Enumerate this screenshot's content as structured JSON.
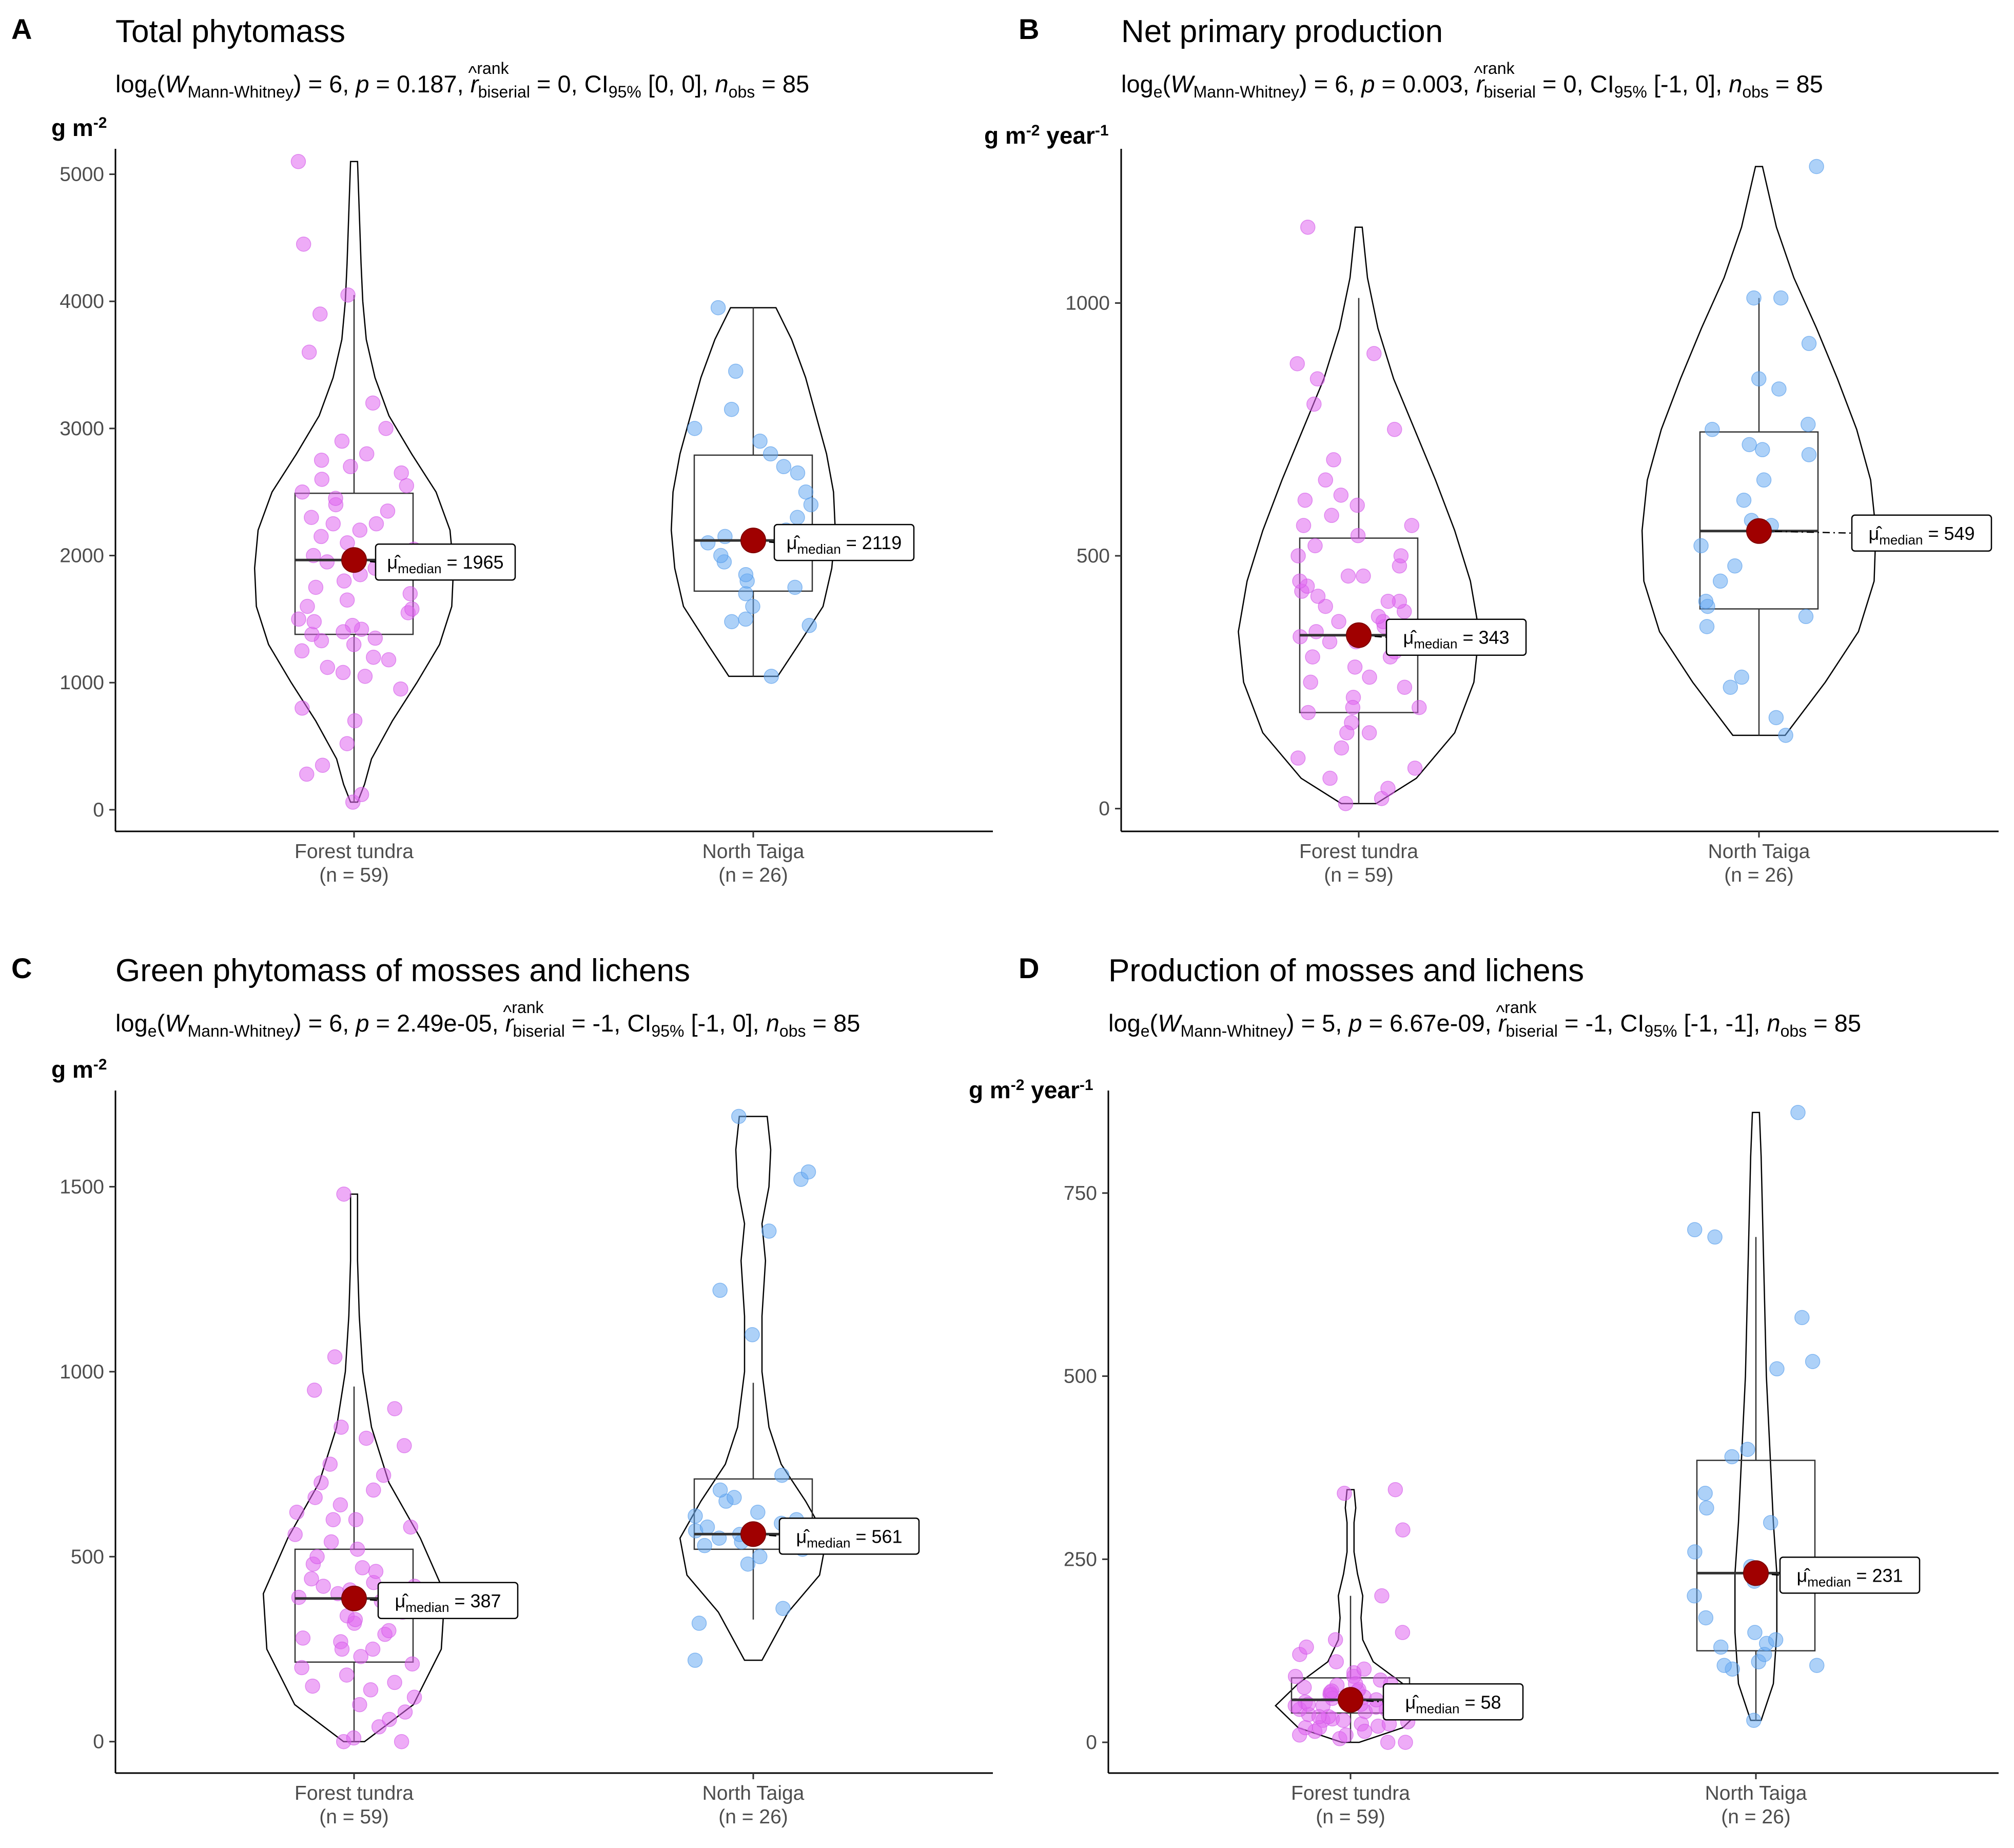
{
  "colors": {
    "forest_tundra_points": "#e066f0",
    "north_taiga_points": "#6aacf2",
    "median_dot": "#a00000"
  },
  "median_symbol": "μ̂",
  "chart_data": [
    {
      "type": "violin",
      "panel_letter": "A",
      "title": "Total phytomass",
      "stat": {
        "log_base": "log",
        "log_sub": "e",
        "W": "W",
        "W_sub": "Mann-Whitney",
        "W_val": " = 6, ",
        "p": "p",
        "p_val": " = 0.187, ",
        "r": "r",
        "r_hat": "^",
        "r_sup": "rank",
        "r_sub": "biserial",
        "r_val": " = 0, ",
        "ci": "CI",
        "ci_sub": "95%",
        "ci_val": " [0, 0], ",
        "n": "n",
        "n_sub": "obs",
        "n_val": " = 85"
      },
      "ylabel": "g m",
      "ylabel_sup": "-2",
      "ylabel_tail": "",
      "ylim": [
        -170,
        5200
      ],
      "yticks": [
        0,
        1000,
        2000,
        3000,
        4000,
        5000
      ],
      "yticklabels": [
        "0",
        "1000",
        "2000",
        "3000",
        "4000",
        "5000"
      ],
      "groups": [
        {
          "name": "Forest tundra",
          "n_label": "(n = 59)",
          "cls": "pt-ft",
          "median": 1965,
          "q1": 1380,
          "q3": 2490,
          "whisker_low": 60,
          "whisker_high": 4050,
          "median_label_value": "1965",
          "violin": [
            [
              60,
              0.02
            ],
            [
              200,
              0.06
            ],
            [
              400,
              0.1
            ],
            [
              700,
              0.22
            ],
            [
              1000,
              0.36
            ],
            [
              1300,
              0.49
            ],
            [
              1600,
              0.56
            ],
            [
              1900,
              0.57
            ],
            [
              2200,
              0.55
            ],
            [
              2500,
              0.47
            ],
            [
              2800,
              0.33
            ],
            [
              3100,
              0.2
            ],
            [
              3400,
              0.12
            ],
            [
              3700,
              0.07
            ],
            [
              4000,
              0.05
            ],
            [
              4300,
              0.04
            ],
            [
              4700,
              0.03
            ],
            [
              5100,
              0.02
            ]
          ],
          "points": [
            60,
            120,
            280,
            350,
            520,
            700,
            800,
            950,
            1050,
            1080,
            1120,
            1180,
            1200,
            1250,
            1300,
            1330,
            1350,
            1380,
            1420,
            1450,
            1480,
            1500,
            1550,
            1580,
            1600,
            1650,
            1700,
            1750,
            1800,
            1850,
            1900,
            1950,
            2000,
            2050,
            2100,
            2150,
            2200,
            2250,
            2300,
            2350,
            2400,
            2450,
            2500,
            2550,
            2600,
            2650,
            2700,
            2750,
            2800,
            2900,
            3000,
            3200,
            3600,
            3900,
            4050,
            4450,
            5100,
            1400,
            2250
          ]
        },
        {
          "name": "North Taiga",
          "n_label": "(n = 26)",
          "cls": "pt-nt",
          "median": 2119,
          "q1": 1720,
          "q3": 2790,
          "whisker_low": 1050,
          "whisker_high": 3950,
          "median_label_value": "2119",
          "violin": [
            [
              1050,
              0.14
            ],
            [
              1300,
              0.26
            ],
            [
              1600,
              0.4
            ],
            [
              1900,
              0.45
            ],
            [
              2200,
              0.47
            ],
            [
              2500,
              0.46
            ],
            [
              2800,
              0.42
            ],
            [
              3100,
              0.36
            ],
            [
              3400,
              0.3
            ],
            [
              3700,
              0.22
            ],
            [
              3950,
              0.13
            ]
          ],
          "points": [
            1050,
            1450,
            1480,
            1500,
            1600,
            1700,
            1750,
            1800,
            1850,
            1950,
            2000,
            2050,
            2100,
            2150,
            2200,
            2300,
            2400,
            2500,
            2650,
            2700,
            2800,
            2900,
            3000,
            3150,
            3450,
            3950
          ]
        }
      ]
    },
    {
      "type": "violin",
      "panel_letter": "B",
      "title": "Net primary production",
      "stat": {
        "log_base": "log",
        "log_sub": "e",
        "W": "W",
        "W_sub": "Mann-Whitney",
        "W_val": " = 6, ",
        "p": "p",
        "p_val": " = 0.003, ",
        "r": "r",
        "r_hat": "^",
        "r_sup": "rank",
        "r_sub": "biserial",
        "r_val": " = 0, ",
        "ci": "CI",
        "ci_sub": "95%",
        "ci_val": " [-1, 0], ",
        "n": "n",
        "n_sub": "obs",
        "n_val": " = 85"
      },
      "ylabel": "g m",
      "ylabel_sup": "-2",
      "ylabel_tail": " year",
      "ylabel_tail_sup": "-1",
      "ylim": [
        -45,
        1305
      ],
      "yticks": [
        0,
        500,
        1000
      ],
      "yticklabels": [
        "0",
        "500",
        "1000"
      ],
      "groups": [
        {
          "name": "Forest tundra",
          "n_label": "(n = 59)",
          "cls": "pt-ft",
          "median": 343,
          "q1": 190,
          "q3": 535,
          "whisker_low": 10,
          "whisker_high": 1010,
          "median_label_value": "343",
          "violin": [
            [
              10,
              0.1
            ],
            [
              60,
              0.33
            ],
            [
              150,
              0.55
            ],
            [
              250,
              0.66
            ],
            [
              350,
              0.69
            ],
            [
              450,
              0.64
            ],
            [
              550,
              0.55
            ],
            [
              650,
              0.44
            ],
            [
              750,
              0.32
            ],
            [
              850,
              0.2
            ],
            [
              950,
              0.11
            ],
            [
              1050,
              0.05
            ],
            [
              1150,
              0.02
            ]
          ],
          "points": [
            10,
            20,
            40,
            60,
            80,
            100,
            120,
            150,
            170,
            190,
            200,
            220,
            240,
            260,
            280,
            300,
            310,
            320,
            330,
            340,
            350,
            360,
            370,
            380,
            390,
            400,
            410,
            420,
            430,
            440,
            450,
            460,
            480,
            500,
            520,
            540,
            560,
            580,
            600,
            610,
            620,
            650,
            690,
            750,
            800,
            850,
            880,
            900,
            1150,
            150,
            250,
            330,
            460,
            500,
            300,
            200,
            410,
            370,
            560
          ]
        },
        {
          "name": "North Taiga",
          "n_label": "(n = 26)",
          "cls": "pt-nt",
          "median": 549,
          "q1": 395,
          "q3": 745,
          "whisker_low": 145,
          "whisker_high": 1010,
          "median_label_value": "549",
          "violin": [
            [
              145,
              0.15
            ],
            [
              250,
              0.38
            ],
            [
              350,
              0.57
            ],
            [
              450,
              0.66
            ],
            [
              550,
              0.67
            ],
            [
              650,
              0.64
            ],
            [
              750,
              0.56
            ],
            [
              850,
              0.45
            ],
            [
              950,
              0.33
            ],
            [
              1050,
              0.2
            ],
            [
              1150,
              0.1
            ],
            [
              1270,
              0.02
            ]
          ],
          "points": [
            145,
            180,
            240,
            260,
            360,
            380,
            400,
            410,
            450,
            480,
            520,
            560,
            570,
            610,
            650,
            700,
            710,
            720,
            750,
            760,
            830,
            850,
            920,
            1010,
            1010,
            1270
          ]
        }
      ]
    },
    {
      "type": "violin",
      "panel_letter": "C",
      "title": "Green phytomass of mosses and lichens",
      "stat": {
        "log_base": "log",
        "log_sub": "e",
        "W": "W",
        "W_sub": "Mann-Whitney",
        "W_val": " = 6, ",
        "p": "p",
        "p_val": " = 2.49e-05, ",
        "r": "r",
        "r_hat": "^",
        "r_sup": "rank",
        "r_sub": "biserial",
        "r_val": " = -1, ",
        "ci": "CI",
        "ci_sub": "95%",
        "ci_val": " [-1, 0], ",
        "n": "n",
        "n_sub": "obs",
        "n_val": " = 85"
      },
      "ylabel": "g m",
      "ylabel_sup": "-2",
      "ylabel_tail": "",
      "ylim": [
        -85,
        1760
      ],
      "yticks": [
        0,
        500,
        1000,
        1500
      ],
      "yticklabels": [
        "0",
        "500",
        "1000",
        "1500"
      ],
      "groups": [
        {
          "name": "Forest tundra",
          "n_label": "(n = 59)",
          "cls": "pt-ft",
          "median": 387,
          "q1": 215,
          "q3": 520,
          "whisker_low": 0,
          "whisker_high": 960,
          "median_label_value": "387",
          "violin": [
            [
              0,
              0.06
            ],
            [
              100,
              0.34
            ],
            [
              250,
              0.5
            ],
            [
              400,
              0.52
            ],
            [
              550,
              0.38
            ],
            [
              700,
              0.2
            ],
            [
              850,
              0.1
            ],
            [
              1000,
              0.05
            ],
            [
              1150,
              0.03
            ],
            [
              1300,
              0.02
            ],
            [
              1480,
              0.02
            ]
          ],
          "points": [
            0,
            0,
            10,
            40,
            60,
            80,
            100,
            120,
            140,
            160,
            180,
            200,
            210,
            230,
            250,
            270,
            290,
            300,
            320,
            340,
            360,
            380,
            390,
            400,
            410,
            420,
            430,
            440,
            460,
            480,
            500,
            520,
            540,
            560,
            580,
            600,
            620,
            640,
            660,
            680,
            700,
            720,
            750,
            800,
            820,
            850,
            900,
            950,
            1040,
            1480,
            350,
            470,
            280,
            150,
            380,
            420,
            250,
            330,
            600
          ]
        },
        {
          "name": "North Taiga",
          "n_label": "(n = 26)",
          "cls": "pt-nt",
          "median": 561,
          "q1": 520,
          "q3": 710,
          "whisker_low": 330,
          "whisker_high": 970,
          "median_label_value": "561",
          "violin": [
            [
              220,
              0.05
            ],
            [
              350,
              0.2
            ],
            [
              450,
              0.38
            ],
            [
              550,
              0.42
            ],
            [
              650,
              0.3
            ],
            [
              750,
              0.16
            ],
            [
              850,
              0.09
            ],
            [
              1000,
              0.05
            ],
            [
              1150,
              0.05
            ],
            [
              1300,
              0.07
            ],
            [
              1400,
              0.05
            ],
            [
              1500,
              0.09
            ],
            [
              1600,
              0.1
            ],
            [
              1690,
              0.08
            ]
          ],
          "points": [
            220,
            320,
            360,
            480,
            500,
            520,
            530,
            540,
            550,
            560,
            570,
            580,
            590,
            600,
            610,
            620,
            650,
            660,
            680,
            720,
            1100,
            1220,
            1380,
            1520,
            1540,
            1690
          ]
        }
      ]
    },
    {
      "type": "violin",
      "panel_letter": "D",
      "title": "Production of mosses and lichens",
      "stat": {
        "log_base": "log",
        "log_sub": "e",
        "W": "W",
        "W_sub": "Mann-Whitney",
        "W_val": " = 5, ",
        "p": "p",
        "p_val": " = 6.67e-09, ",
        "r": "r",
        "r_hat": "^",
        "r_sup": "rank",
        "r_sub": "biserial",
        "r_val": " = -1, ",
        "ci": "CI",
        "ci_sub": "95%",
        "ci_val": " [-1, -1], ",
        "n": "n",
        "n_sub": "obs",
        "n_val": " = 85"
      },
      "ylabel": "g m",
      "ylabel_sup": "-2",
      "ylabel_tail": " year",
      "ylabel_tail_sup": "-1",
      "ylim": [
        -42,
        890
      ],
      "yticks": [
        0,
        250,
        500,
        750
      ],
      "yticklabels": [
        "0",
        "250",
        "500",
        "750"
      ],
      "groups": [
        {
          "name": "Forest tundra",
          "n_label": "(n = 59)",
          "cls": "pt-ft",
          "median": 58,
          "q1": 40,
          "q3": 88,
          "whisker_low": 0,
          "whisker_high": 200,
          "median_label_value": "58",
          "violin": [
            [
              0,
              0.05
            ],
            [
              20,
              0.3
            ],
            [
              50,
              0.43
            ],
            [
              80,
              0.3
            ],
            [
              110,
              0.13
            ],
            [
              140,
              0.07
            ],
            [
              170,
              0.06
            ],
            [
              200,
              0.07
            ],
            [
              230,
              0.04
            ],
            [
              260,
              0.02
            ],
            [
              300,
              0.02
            ],
            [
              320,
              0.03
            ],
            [
              345,
              0.02
            ]
          ],
          "points": [
            0,
            0,
            5,
            10,
            15,
            20,
            22,
            25,
            28,
            30,
            32,
            35,
            38,
            40,
            42,
            45,
            48,
            50,
            52,
            55,
            58,
            60,
            62,
            65,
            68,
            70,
            72,
            75,
            78,
            80,
            85,
            90,
            95,
            100,
            110,
            120,
            130,
            140,
            150,
            200,
            290,
            340,
            345,
            30,
            45,
            55,
            65,
            20,
            35,
            50,
            60,
            70,
            40,
            25,
            15,
            80,
            90,
            10,
            52
          ]
        },
        {
          "name": "North Taiga",
          "n_label": "(n = 26)",
          "cls": "pt-nt",
          "median": 231,
          "q1": 125,
          "q3": 385,
          "whisker_low": 30,
          "whisker_high": 690,
          "median_label_value": "231",
          "violin": [
            [
              30,
              0.03
            ],
            [
              80,
              0.1
            ],
            [
              150,
              0.12
            ],
            [
              230,
              0.12
            ],
            [
              300,
              0.1
            ],
            [
              400,
              0.08
            ],
            [
              500,
              0.06
            ],
            [
              600,
              0.05
            ],
            [
              700,
              0.04
            ],
            [
              800,
              0.03
            ],
            [
              860,
              0.02
            ]
          ],
          "points": [
            30,
            100,
            105,
            110,
            120,
            130,
            135,
            140,
            150,
            170,
            200,
            220,
            240,
            260,
            300,
            320,
            340,
            390,
            400,
            510,
            520,
            580,
            690,
            700,
            860,
            105
          ]
        }
      ]
    }
  ]
}
